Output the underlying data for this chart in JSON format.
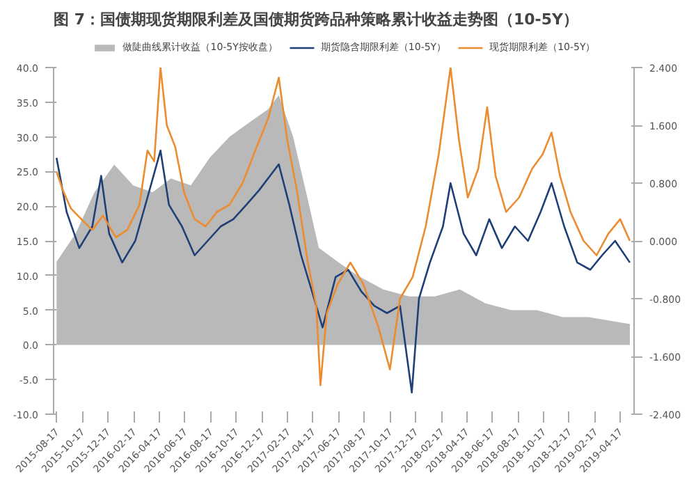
{
  "chart_data": {
    "type": "line",
    "title": "图 7：国债期现货期限利差及国债期货跨品种策略累计收益走势图（10-5Y）",
    "xlim": [
      "2015-08-10",
      "2019-05-20"
    ],
    "xticks": [
      "2015-08-17",
      "2015-10-17",
      "2015-12-17",
      "2016-02-17",
      "2016-04-17",
      "2016-06-17",
      "2016-08-17",
      "2016-10-17",
      "2016-12-17",
      "2017-02-17",
      "2017-04-17",
      "2017-06-17",
      "2017-08-17",
      "2017-10-17",
      "2017-12-17",
      "2018-02-17",
      "2018-04-17",
      "2018-06-17",
      "2018-08-17",
      "2018-10-17",
      "2018-12-17",
      "2019-02-17",
      "2019-04-17"
    ],
    "ylim": [
      -10,
      40
    ],
    "yticks": [
      {
        "value": -10,
        "label": "-10.0"
      },
      {
        "value": -5,
        "label": "-5.0"
      },
      {
        "value": 0,
        "label": "0.0"
      },
      {
        "value": 5,
        "label": "5.0"
      },
      {
        "value": 10,
        "label": "10.0"
      },
      {
        "value": 15,
        "label": "15.0"
      },
      {
        "value": 20,
        "label": "20.0"
      },
      {
        "value": 25,
        "label": "25.0"
      },
      {
        "value": 30,
        "label": "30.0"
      },
      {
        "value": 35,
        "label": "35.0"
      },
      {
        "value": 40,
        "label": "40.0"
      }
    ],
    "y2lim": [
      -2.4,
      2.4
    ],
    "y2ticks": [
      {
        "value": -2.4,
        "label": "-2.400"
      },
      {
        "value": -1.6,
        "label": "-1.600"
      },
      {
        "value": -0.8,
        "label": "-0.800"
      },
      {
        "value": 0,
        "label": "0.000"
      },
      {
        "value": 0.8,
        "label": "0.800"
      },
      {
        "value": 1.6,
        "label": "1.600"
      },
      {
        "value": 2.4,
        "label": "2.400"
      }
    ],
    "grid": false,
    "legend": "top",
    "series": [
      {
        "name": "做陡曲线累计收益（10-5Y按收盘）",
        "type": "area",
        "color": "#b9b9b9",
        "x": [
          "2015-08-17",
          "2015-10-01",
          "2015-11-15",
          "2016-01-01",
          "2016-02-15",
          "2016-04-01",
          "2016-05-15",
          "2016-07-01",
          "2016-08-15",
          "2016-10-01",
          "2016-11-15",
          "2017-01-01",
          "2017-01-26",
          "2017-03-01",
          "2017-04-01",
          "2017-05-01",
          "2017-06-15",
          "2017-08-01",
          "2017-10-01",
          "2017-12-01",
          "2018-02-01",
          "2018-04-01",
          "2018-06-01",
          "2018-08-01",
          "2018-10-01",
          "2018-12-01",
          "2019-02-01",
          "2019-05-10"
        ],
        "values": [
          12,
          16,
          22,
          26,
          23,
          22,
          24,
          23,
          27,
          30,
          32,
          34,
          36,
          30,
          22,
          14,
          12,
          10,
          8,
          7,
          7,
          8,
          6,
          5,
          5,
          4,
          4,
          3
        ]
      },
      {
        "name": "期货隐含期限利差（10-5Y）",
        "axis": "y2",
        "color": "#1f3f77",
        "x": [
          "2015-08-17",
          "2015-09-10",
          "2015-10-10",
          "2015-11-10",
          "2015-12-01",
          "2015-12-20",
          "2016-01-20",
          "2016-02-20",
          "2016-03-20",
          "2016-04-20",
          "2016-05-10",
          "2016-06-10",
          "2016-07-10",
          "2016-08-10",
          "2016-09-10",
          "2016-10-10",
          "2016-11-10",
          "2016-12-10",
          "2017-01-26",
          "2017-02-20",
          "2017-03-20",
          "2017-04-20",
          "2017-05-10",
          "2017-06-10",
          "2017-07-10",
          "2017-08-10",
          "2017-09-10",
          "2017-10-10",
          "2017-11-10",
          "2017-12-08",
          "2017-12-25",
          "2018-01-20",
          "2018-02-20",
          "2018-03-10",
          "2018-04-10",
          "2018-05-10",
          "2018-06-10",
          "2018-07-10",
          "2018-08-10",
          "2018-09-10",
          "2018-10-10",
          "2018-11-05",
          "2018-12-05",
          "2019-01-05",
          "2019-02-05",
          "2019-03-05",
          "2019-04-05",
          "2019-05-10"
        ],
        "values": [
          1.15,
          0.4,
          -0.1,
          0.2,
          0.9,
          0.1,
          -0.3,
          0.0,
          0.6,
          1.25,
          0.5,
          0.2,
          -0.2,
          0.0,
          0.2,
          0.3,
          0.5,
          0.7,
          1.06,
          0.5,
          -0.2,
          -0.8,
          -1.2,
          -0.5,
          -0.4,
          -0.7,
          -0.9,
          -1.0,
          -0.9,
          -2.1,
          -0.8,
          -0.3,
          0.2,
          0.8,
          0.1,
          -0.2,
          0.3,
          -0.1,
          0.2,
          0.0,
          0.4,
          0.8,
          0.2,
          -0.3,
          -0.4,
          -0.2,
          0.0,
          -0.3
        ]
      },
      {
        "name": "现货期限利差（10-5Y）",
        "axis": "y2",
        "color": "#ed8b2f",
        "x": [
          "2015-08-17",
          "2015-09-01",
          "2015-09-20",
          "2015-10-15",
          "2015-11-10",
          "2015-12-05",
          "2016-01-05",
          "2016-02-01",
          "2016-03-01",
          "2016-03-20",
          "2016-04-05",
          "2016-04-20",
          "2016-05-05",
          "2016-05-25",
          "2016-06-15",
          "2016-07-10",
          "2016-08-05",
          "2016-09-01",
          "2016-10-01",
          "2016-11-01",
          "2016-12-01",
          "2017-01-01",
          "2017-01-26",
          "2017-02-15",
          "2017-03-10",
          "2017-04-05",
          "2017-04-25",
          "2017-05-05",
          "2017-05-20",
          "2017-06-15",
          "2017-07-15",
          "2017-08-15",
          "2017-09-20",
          "2017-10-17",
          "2017-11-10",
          "2017-12-10",
          "2018-01-10",
          "2018-02-10",
          "2018-03-10",
          "2018-03-30",
          "2018-04-20",
          "2018-05-15",
          "2018-06-05",
          "2018-06-25",
          "2018-07-20",
          "2018-08-20",
          "2018-09-20",
          "2018-10-15",
          "2018-11-05",
          "2018-11-25",
          "2018-12-20",
          "2019-01-20",
          "2019-02-20",
          "2019-03-20",
          "2019-04-17",
          "2019-05-10"
        ],
        "values": [
          0.96,
          0.7,
          0.45,
          0.3,
          0.15,
          0.35,
          0.05,
          0.15,
          0.5,
          1.25,
          1.1,
          2.4,
          1.6,
          1.3,
          0.67,
          0.3,
          0.2,
          0.4,
          0.5,
          0.8,
          1.25,
          1.7,
          2.26,
          1.4,
          0.7,
          -0.3,
          -0.9,
          -2.0,
          -1.0,
          -0.6,
          -0.3,
          -0.6,
          -1.2,
          -1.78,
          -0.8,
          -0.5,
          0.2,
          1.2,
          2.4,
          1.4,
          0.6,
          1.0,
          1.85,
          0.9,
          0.4,
          0.6,
          1.0,
          1.2,
          1.5,
          0.9,
          0.4,
          0.0,
          -0.2,
          0.1,
          0.3,
          0.0
        ]
      }
    ]
  }
}
